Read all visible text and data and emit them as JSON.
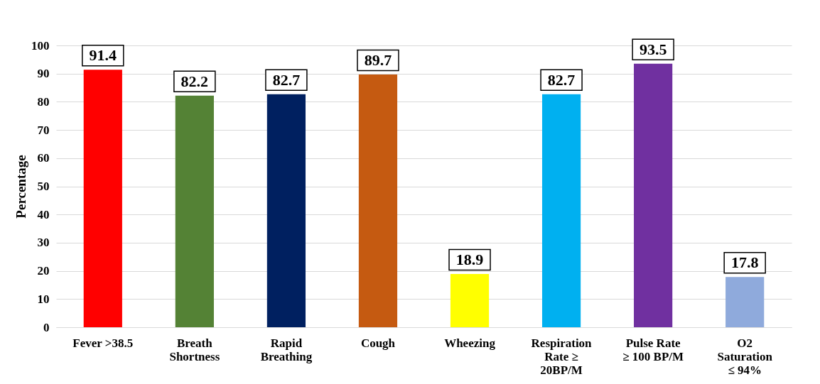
{
  "chart_data": {
    "type": "bar",
    "ylabel": "Percentage",
    "categories": [
      "Fever >38.5",
      "Breath Shortness",
      "Rapid Breathing",
      "Cough",
      "Wheezing",
      "Respiration Rate ≥ 20BP/M",
      "Pulse Rate ≥ 100 BP/M",
      "O2 Saturation ≤ 94%"
    ],
    "values": [
      91.4,
      82.2,
      82.7,
      89.7,
      18.9,
      82.7,
      93.5,
      17.8
    ],
    "colors": [
      "#ff0000",
      "#548235",
      "#002060",
      "#c55a11",
      "#ffff00",
      "#00b0f0",
      "#7030a0",
      "#8faadc"
    ],
    "ylim": [
      0,
      100
    ],
    "yticks": [
      0,
      10,
      20,
      30,
      40,
      50,
      60,
      70,
      80,
      90,
      100
    ],
    "grid": "y",
    "data_labels": true
  }
}
